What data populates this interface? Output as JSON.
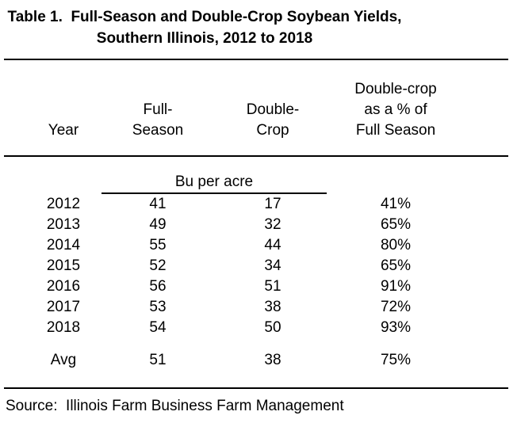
{
  "title": {
    "line1": "Table 1.  Full-Season and Double-Crop Soybean Yields,",
    "line2": "Southern Illinois, 2012 to 2018"
  },
  "table": {
    "columns": [
      {
        "line1": "Year"
      },
      {
        "line1": "Full-",
        "line2": "Season"
      },
      {
        "line1": "Double-",
        "line2": "Crop"
      },
      {
        "line1": "Double-crop",
        "line2": "as a % of",
        "line3": "Full Season"
      }
    ],
    "unit_label": "Bu per acre",
    "rows": [
      {
        "year": "2012",
        "full_season": "41",
        "double_crop": "17",
        "pct": "41%"
      },
      {
        "year": "2013",
        "full_season": "49",
        "double_crop": "32",
        "pct": "65%"
      },
      {
        "year": "2014",
        "full_season": "55",
        "double_crop": "44",
        "pct": "80%"
      },
      {
        "year": "2015",
        "full_season": "52",
        "double_crop": "34",
        "pct": "65%"
      },
      {
        "year": "2016",
        "full_season": "56",
        "double_crop": "51",
        "pct": "91%"
      },
      {
        "year": "2017",
        "full_season": "53",
        "double_crop": "38",
        "pct": "72%"
      },
      {
        "year": "2018",
        "full_season": "54",
        "double_crop": "50",
        "pct": "93%"
      }
    ],
    "avg_row": {
      "label": "Avg",
      "full_season": "51",
      "double_crop": "38",
      "pct": "75%"
    }
  },
  "source": "Source:  Illinois Farm Business Farm Management",
  "chart_data": {
    "type": "table",
    "title": "Table 1. Full-Season and Double-Crop Soybean Yields, Southern Illinois, 2012 to 2018",
    "columns": [
      "Year",
      "Full-Season",
      "Double-Crop",
      "Double-crop as a % of Full Season"
    ],
    "unit": "Bu per acre",
    "rows": [
      [
        "2012",
        41,
        17,
        "41%"
      ],
      [
        "2013",
        49,
        32,
        "65%"
      ],
      [
        "2014",
        55,
        44,
        "80%"
      ],
      [
        "2015",
        52,
        34,
        "65%"
      ],
      [
        "2016",
        56,
        51,
        "91%"
      ],
      [
        "2017",
        53,
        38,
        "72%"
      ],
      [
        "2018",
        54,
        50,
        "93%"
      ]
    ],
    "average_row": [
      "Avg",
      51,
      38,
      "75%"
    ],
    "source": "Illinois Farm Business Farm Management",
    "text_color": "#000000",
    "background_color": "#ffffff"
  }
}
